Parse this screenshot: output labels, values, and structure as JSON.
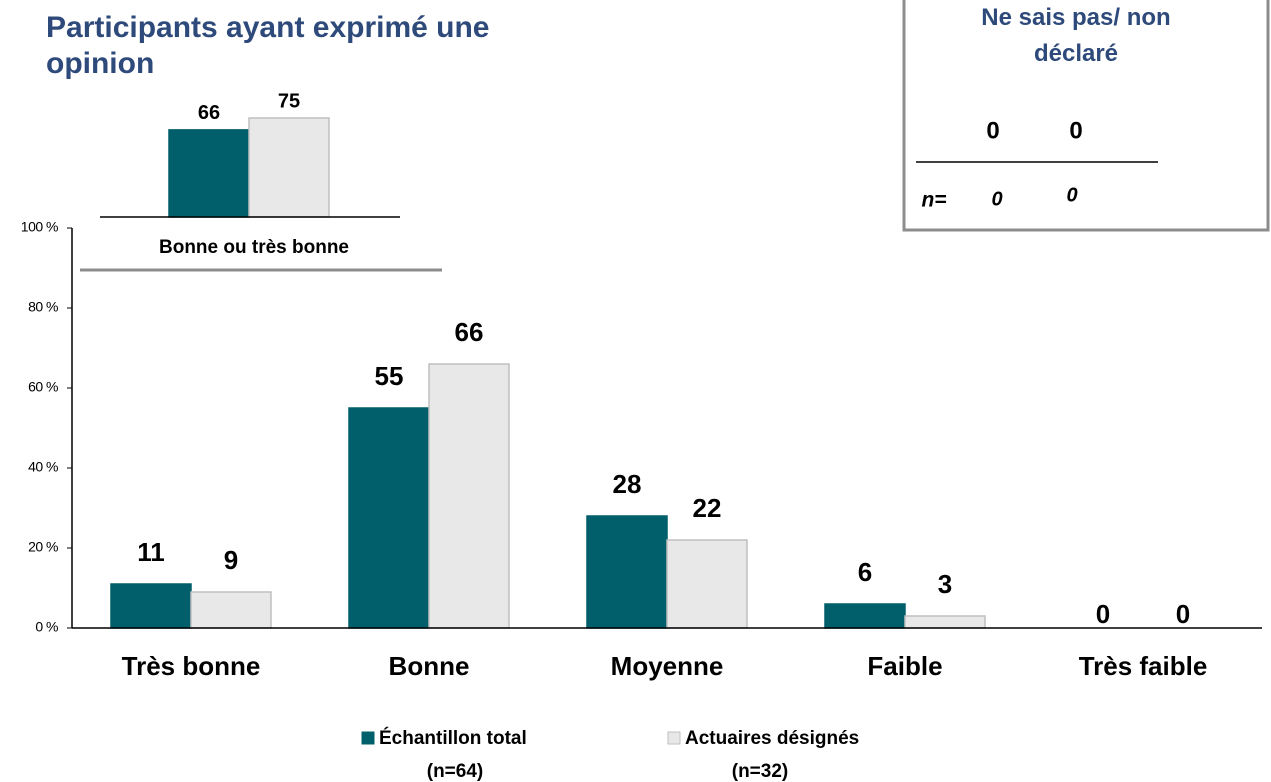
{
  "chart_data": [
    {
      "type": "bar",
      "categories": [
        "Très bonne",
        "Bonne",
        "Moyenne",
        "Faible",
        "Très faible"
      ],
      "series": [
        {
          "name": "Échantillon total",
          "sample": "(n=64)",
          "color": "#005f6a",
          "values": [
            11,
            55,
            28,
            6,
            0
          ]
        },
        {
          "name": "Actuaires désignés",
          "sample": "(n=32)",
          "color": "#e8e8e8",
          "values": [
            9,
            66,
            22,
            3,
            0
          ]
        }
      ],
      "ylim": [
        0,
        100
      ],
      "yticks": [
        {
          "value": 0,
          "label": "0 %"
        },
        {
          "value": 20,
          "label": "20 %"
        },
        {
          "value": 40,
          "label": "40 %"
        },
        {
          "value": 60,
          "label": "60 %"
        },
        {
          "value": 80,
          "label": "80 %"
        },
        {
          "value": 100,
          "label": "100 %"
        }
      ],
      "legend": "bottom"
    },
    {
      "type": "bar",
      "title": "Participants ayant exprimé une opinion",
      "categories": [
        "Bonne ou très bonne"
      ],
      "series": [
        {
          "name": "Échantillon total",
          "color": "#005f6a",
          "values": [
            66
          ]
        },
        {
          "name": "Actuaires désignés",
          "color": "#e8e8e8",
          "values": [
            75
          ]
        }
      ]
    }
  ],
  "side_box": {
    "title": "Ne sais pas/ non déclaré",
    "values": [
      0,
      0
    ],
    "n_label": "n=",
    "n_values": [
      0,
      0
    ]
  }
}
